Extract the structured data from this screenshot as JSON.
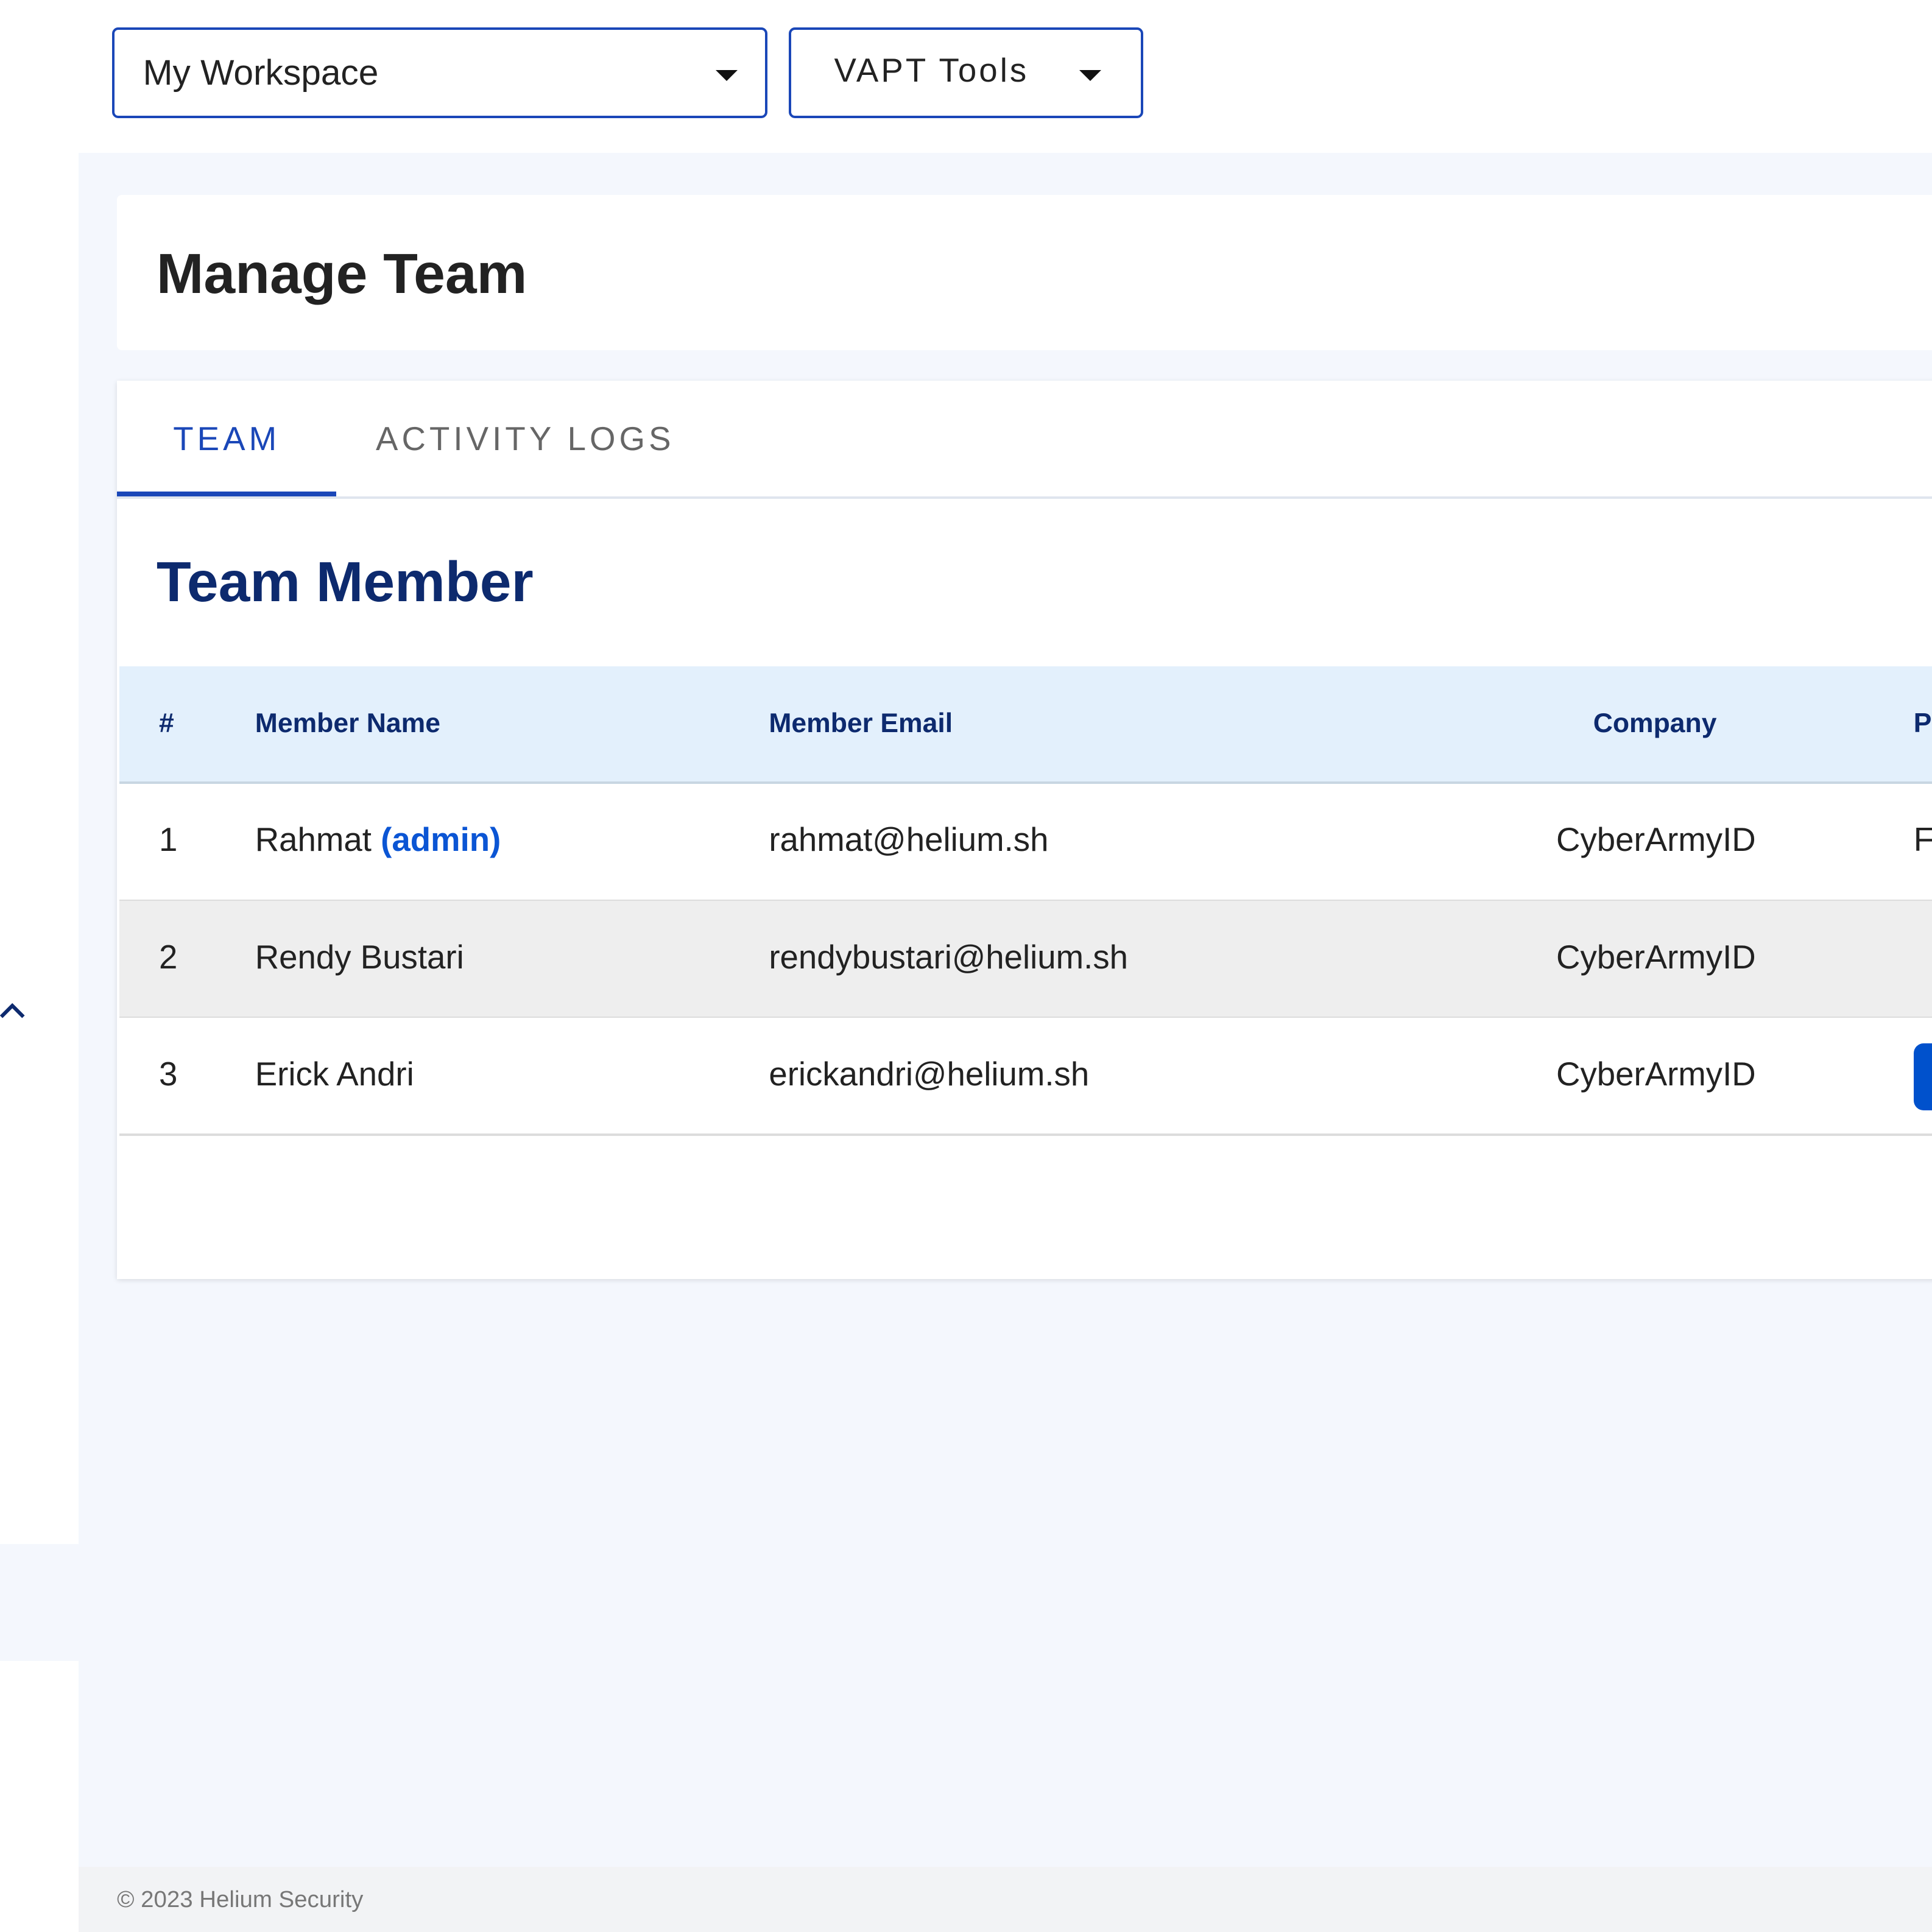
{
  "topbar": {
    "workspace_select": "My Workspace",
    "tools_select": "VAPT Tools"
  },
  "page": {
    "title": "Manage Team"
  },
  "tabs": [
    {
      "label": "TEAM",
      "active": true
    },
    {
      "label": "ACTIVITY LOGS",
      "active": false
    }
  ],
  "section": {
    "title": "Team Member"
  },
  "table": {
    "headers": [
      "#",
      "Member Name",
      "Member Email",
      "Company",
      "P"
    ],
    "rows": [
      {
        "num": "1",
        "name": "Rahmat",
        "badge": "(admin)",
        "email": "rahmat@helium.sh",
        "company": "CyberArmyID",
        "extra": "F"
      },
      {
        "num": "2",
        "name": "Rendy Bustari",
        "badge": "",
        "email": "rendybustari@helium.sh",
        "company": "CyberArmyID",
        "extra": ""
      },
      {
        "num": "3",
        "name": "Erick Andri",
        "badge": "",
        "email": "erickandri@helium.sh",
        "company": "CyberArmyID",
        "extra": ""
      }
    ]
  },
  "sidebar": {
    "collapse_icon": "chevron-up-icon"
  },
  "footer": {
    "copyright": "© 2023 Helium Security"
  },
  "colors": {
    "accent": "#1a47b8",
    "navy": "#0d2a6e",
    "link": "#0b55d4",
    "header_bg": "#e3f0fc",
    "page_bg": "#f4f7fd"
  }
}
